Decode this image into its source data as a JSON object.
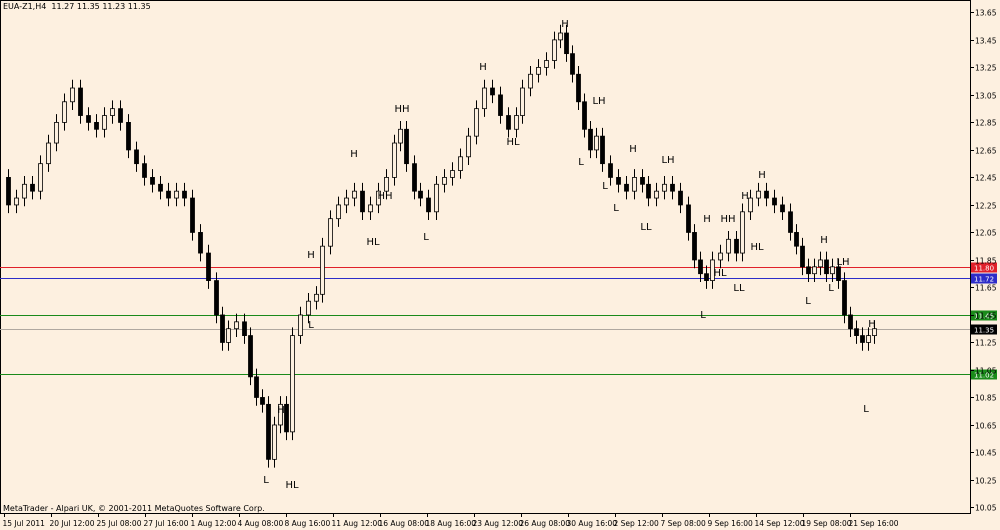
{
  "header": {
    "symbol": "EUA-Z1,H4",
    "open": "11.27",
    "high": "11.35",
    "low": "11.23",
    "close": "11.35"
  },
  "footer": {
    "copyright": "MetaTrader - Alpari UK, © 2001-2011 MetaQuotes Software Corp."
  },
  "colors": {
    "background": "#fdf0e0",
    "red_line": "#e0202a",
    "blue_line": "#2c2cc8",
    "green_line": "#1a8a1a",
    "current_price_tag": "#000000"
  },
  "chart_data": {
    "type": "candlestick",
    "y_ticks": [
      "13.65",
      "13.45",
      "13.25",
      "13.05",
      "12.85",
      "12.65",
      "12.45",
      "12.25",
      "12.05",
      "11.85",
      "11.65",
      "11.45",
      "11.25",
      "11.05",
      "10.85",
      "10.65",
      "10.45",
      "10.25",
      "10.05"
    ],
    "x_ticks": [
      "15 Jul 2011",
      "20 Jul 12:00",
      "25 Jul 08:00",
      "27 Jul 16:00",
      "1 Aug 12:00",
      "4 Aug 08:00",
      "8 Aug 16:00",
      "11 Aug 12:00",
      "16 Aug 08:00",
      "18 Aug 16:00",
      "23 Aug 12:00",
      "26 Aug 08:00",
      "30 Aug 16:00",
      "2 Sep 12:00",
      "7 Sep 08:00",
      "9 Sep 16:00",
      "14 Sep 12:00",
      "19 Sep 08:00",
      "21 Sep 16:00"
    ],
    "ylim": [
      10.01,
      13.74
    ],
    "horizontal_lines": [
      {
        "label": "11.80",
        "value": 11.8,
        "color": "red"
      },
      {
        "label": "11.72",
        "value": 11.72,
        "color": "blue"
      },
      {
        "label": "11.45",
        "value": 11.45,
        "color": "green"
      },
      {
        "label": "11.02",
        "value": 11.02,
        "color": "green"
      }
    ],
    "current_price": {
      "label": "11.35",
      "value": 11.35
    },
    "annotations": [
      {
        "text": "H",
        "x": 60,
        "price": 13.18
      },
      {
        "text": "HH",
        "x": 97,
        "price": 12.92
      },
      {
        "text": "H",
        "x": 126,
        "price": 12.68
      },
      {
        "text": "H",
        "x": 157,
        "price": 12.62
      },
      {
        "text": "LH",
        "x": 181,
        "price": 12.61
      },
      {
        "text": "HL",
        "x": 114,
        "price": 12.01
      },
      {
        "text": "L",
        "x": 156,
        "price": 12.04
      },
      {
        "text": "L",
        "x": 219,
        "price": 12.67
      },
      {
        "text": "HL",
        "x": 191,
        "price": 12.87
      },
      {
        "text": "H",
        "x": 210,
        "price": 12.07
      },
      {
        "text": "H",
        "x": 259,
        "price": 12.76
      },
      {
        "text": "LH",
        "x": 298,
        "price": 12.59
      },
      {
        "text": "L",
        "x": 324,
        "price": 12.58
      },
      {
        "text": "H",
        "x": 334,
        "price": 12.32
      },
      {
        "text": "L",
        "x": 344,
        "price": 12.45
      },
      {
        "text": "L",
        "x": 346,
        "price": 12.22
      },
      {
        "text": "LL",
        "x": 342,
        "price": 12.15
      },
      {
        "text": "H",
        "x": 363,
        "price": 12.32
      },
      {
        "text": "HH",
        "x": 365,
        "price": 12.26
      },
      {
        "text": "HL",
        "x": 372,
        "price": 12.04
      },
      {
        "text": "HL",
        "x": 354,
        "price": 11.9
      },
      {
        "text": "LL",
        "x": 370,
        "price": 11.66
      },
      {
        "text": "L",
        "x": 389,
        "price": 11.56
      },
      {
        "text": "L",
        "x": 338,
        "price": 11.63
      },
      {
        "text": "L",
        "x": 328,
        "price": 11.41
      },
      {
        "text": "H",
        "x": 392,
        "price": 12.23
      },
      {
        "text": "H",
        "x": 401,
        "price": 12.1
      },
      {
        "text": "L",
        "x": 404,
        "price": 11.66
      },
      {
        "text": "LH",
        "x": 414,
        "price": 11.79
      },
      {
        "text": "H",
        "x": 415,
        "price": 11.4
      },
      {
        "text": "L",
        "x": 418,
        "price": 10.84
      }
    ]
  }
}
